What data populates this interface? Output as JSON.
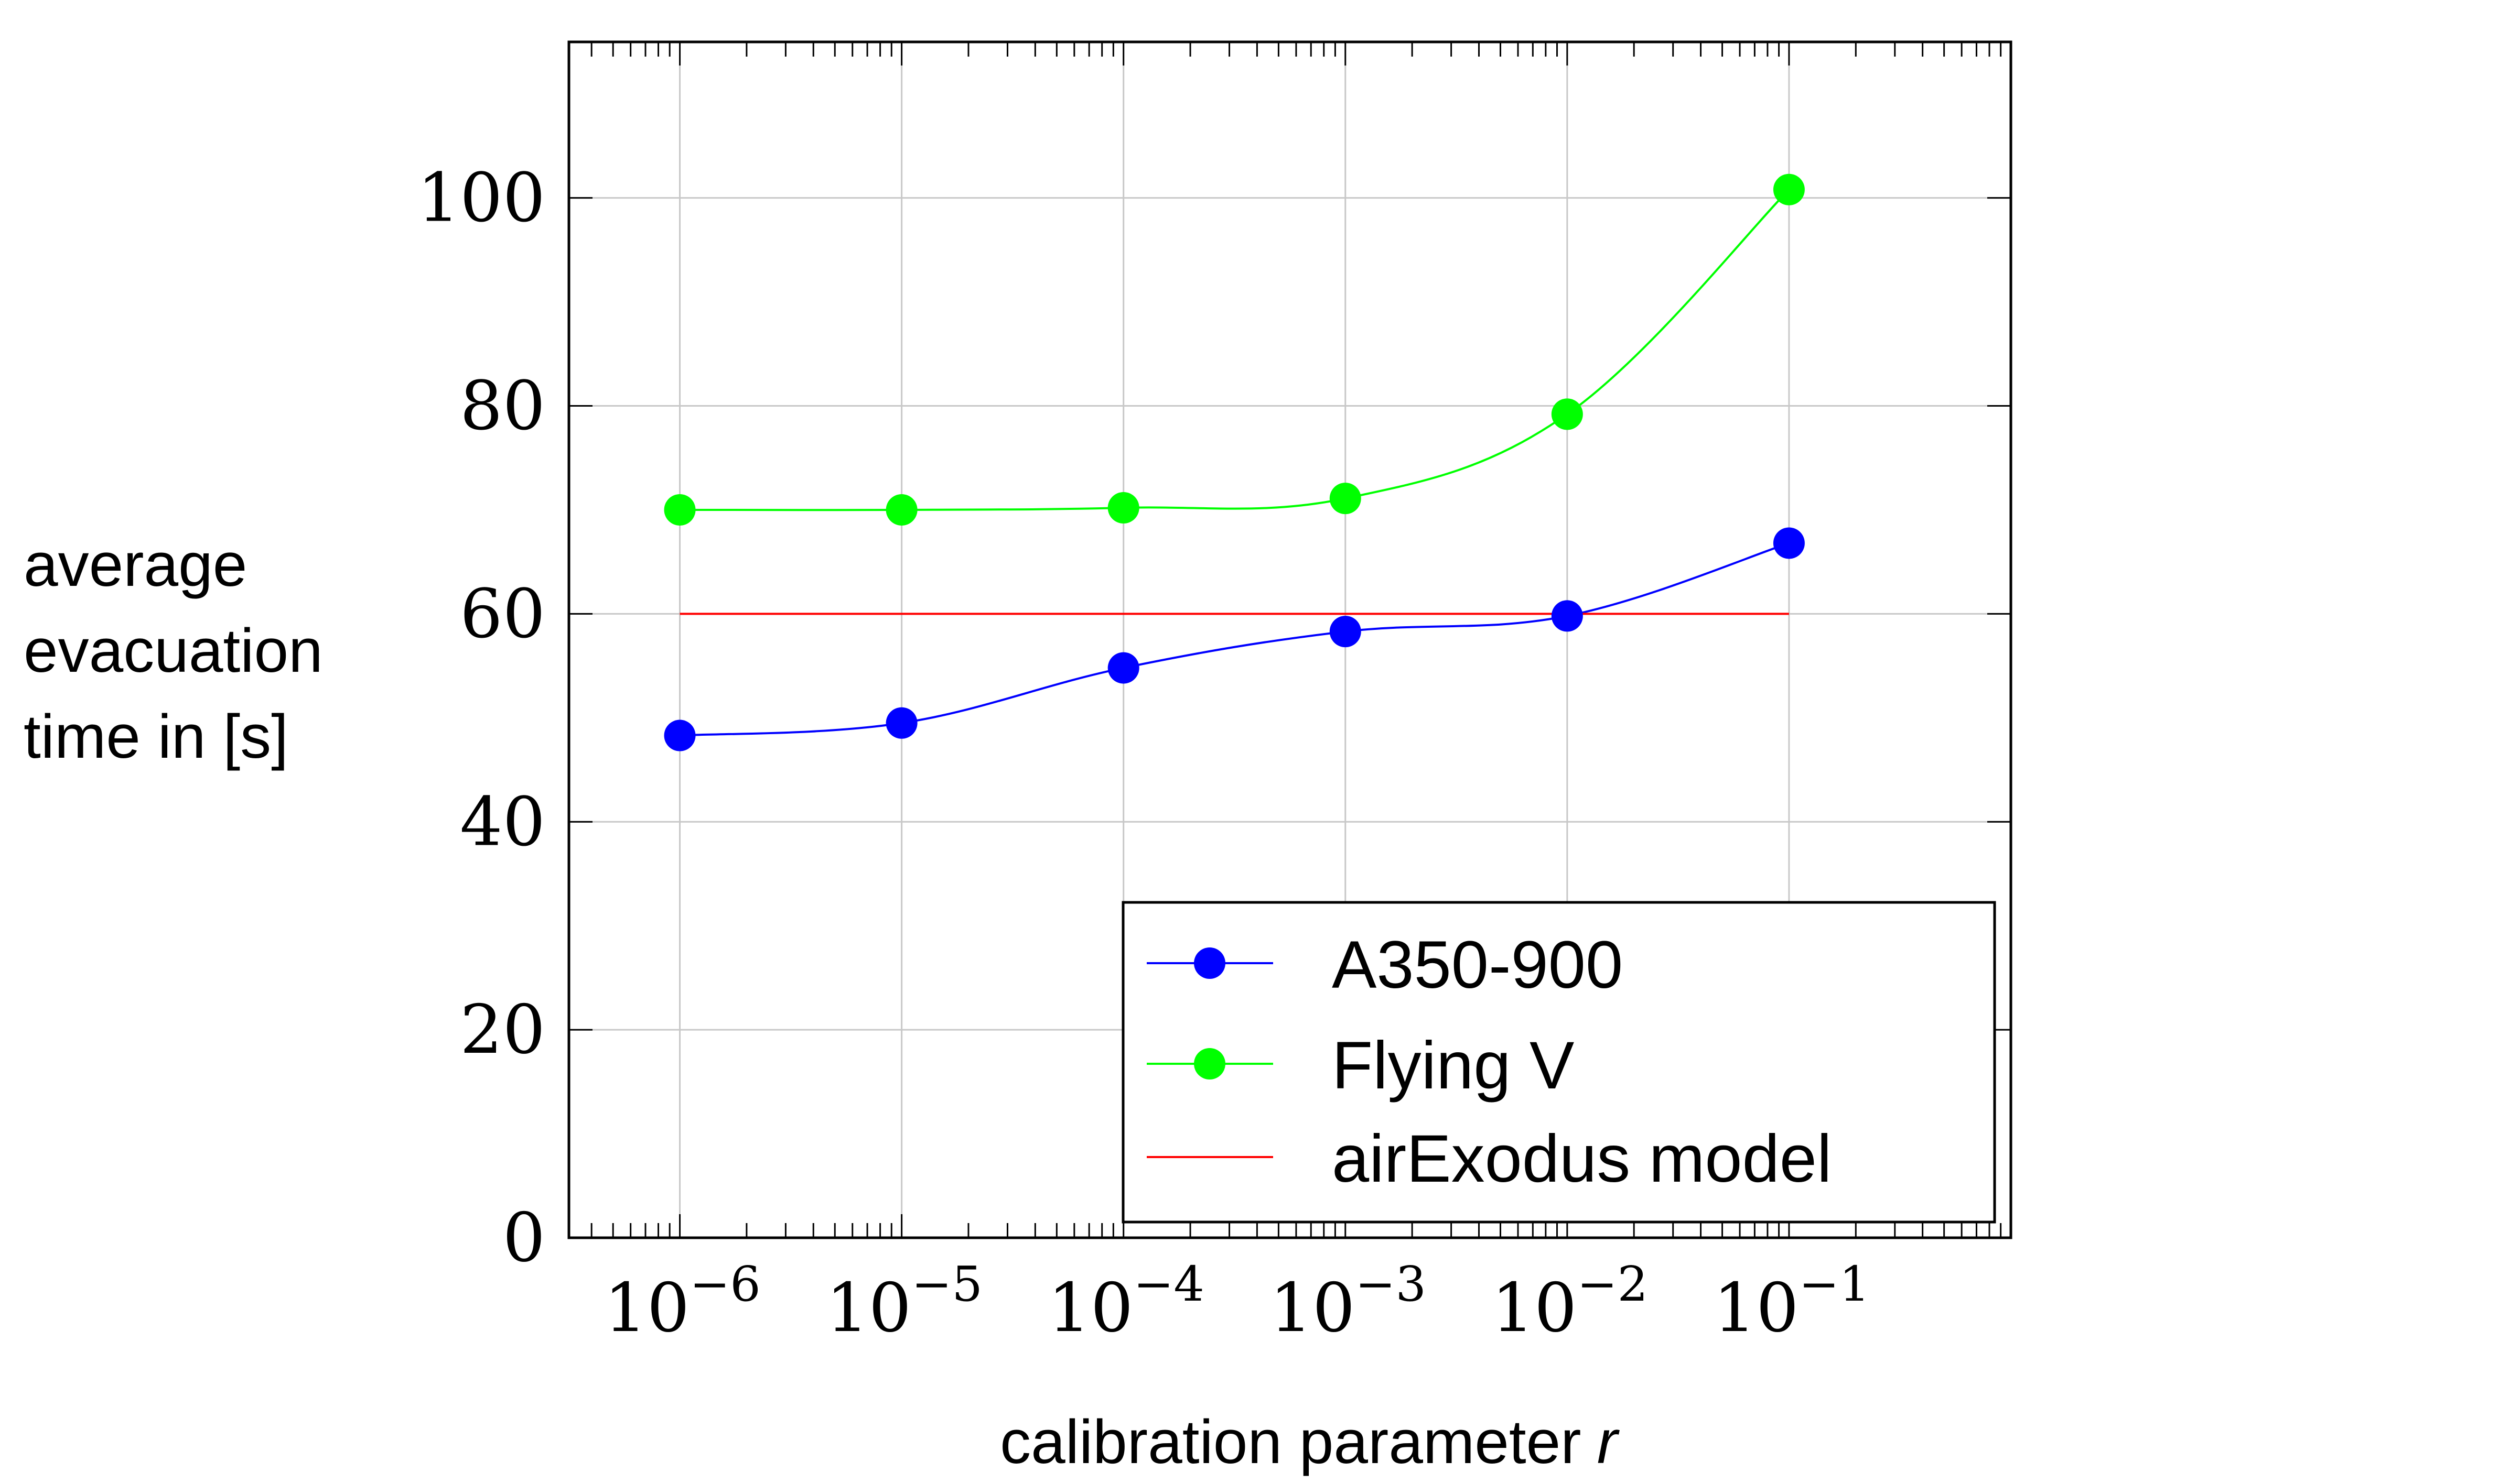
{
  "chart_data": {
    "type": "line",
    "xscale": "log",
    "xlim": [
      -6.5,
      0
    ],
    "ylim": [
      0,
      115
    ],
    "grid": true,
    "xlabel": "calibration parameter",
    "xlabel_var": "r",
    "ylabel_lines": [
      "average",
      "evacuation",
      "time in [s]"
    ],
    "x_exponents": [
      -6,
      -5,
      -4,
      -3,
      -2,
      -1
    ],
    "x_ticks": [
      {
        "base": "10",
        "exp": "−6"
      },
      {
        "base": "10",
        "exp": "−5"
      },
      {
        "base": "10",
        "exp": "−4"
      },
      {
        "base": "10",
        "exp": "−3"
      },
      {
        "base": "10",
        "exp": "−2"
      },
      {
        "base": "10",
        "exp": "−1"
      }
    ],
    "y_ticks": [
      "0",
      "20",
      "40",
      "60",
      "80",
      "100"
    ],
    "y_tick_values": [
      0,
      20,
      40,
      60,
      80,
      100
    ],
    "series": [
      {
        "name": "A350-900",
        "color": "#0000ff",
        "markers": true,
        "values": [
          48.3,
          49.5,
          54.8,
          58.3,
          59.8,
          66.8
        ]
      },
      {
        "name": "Flying V",
        "color": "#00ff00",
        "markers": true,
        "values": [
          70.0,
          70.0,
          70.2,
          71.1,
          79.2,
          100.8
        ]
      },
      {
        "name": "airExodus model",
        "color": "#ff0000",
        "markers": false,
        "values": [
          60,
          60,
          60,
          60,
          60,
          60
        ]
      }
    ],
    "legend_position": "bottom-right"
  }
}
